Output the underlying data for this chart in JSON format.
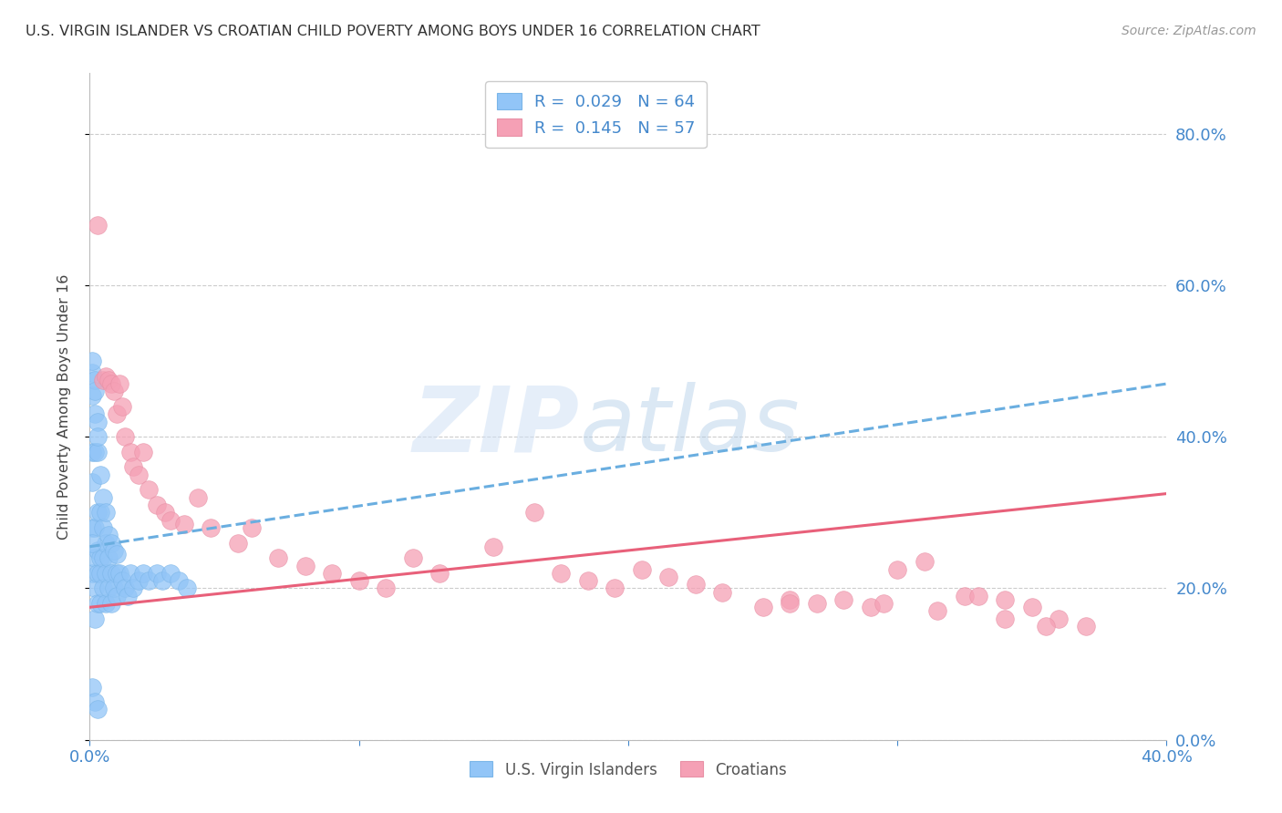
{
  "title": "U.S. VIRGIN ISLANDER VS CROATIAN CHILD POVERTY AMONG BOYS UNDER 16 CORRELATION CHART",
  "source": "Source: ZipAtlas.com",
  "ylabel": "Child Poverty Among Boys Under 16",
  "ytick_labels": [
    "0.0%",
    "20.0%",
    "40.0%",
    "60.0%",
    "80.0%"
  ],
  "ytick_values": [
    0.0,
    0.2,
    0.4,
    0.6,
    0.8
  ],
  "xlim": [
    0.0,
    0.4
  ],
  "ylim": [
    0.0,
    0.88
  ],
  "blue_color": "#92c5f7",
  "pink_color": "#f5a0b5",
  "line_blue_color": "#6aaee0",
  "line_pink_color": "#e8607a",
  "axis_label_color": "#4488cc",
  "title_color": "#333333",
  "grid_color": "#cccccc",
  "blue_scatter_x": [
    0.001,
    0.001,
    0.001,
    0.001,
    0.001,
    0.001,
    0.001,
    0.002,
    0.002,
    0.002,
    0.002,
    0.002,
    0.002,
    0.002,
    0.002,
    0.003,
    0.003,
    0.003,
    0.003,
    0.003,
    0.003,
    0.003,
    0.004,
    0.004,
    0.004,
    0.004,
    0.004,
    0.005,
    0.005,
    0.005,
    0.005,
    0.006,
    0.006,
    0.006,
    0.006,
    0.007,
    0.007,
    0.007,
    0.008,
    0.008,
    0.008,
    0.009,
    0.009,
    0.01,
    0.01,
    0.01,
    0.011,
    0.012,
    0.013,
    0.014,
    0.015,
    0.016,
    0.018,
    0.02,
    0.022,
    0.025,
    0.027,
    0.03,
    0.033,
    0.036,
    0.001,
    0.002,
    0.003,
    0.001
  ],
  "blue_scatter_y": [
    0.485,
    0.455,
    0.38,
    0.34,
    0.28,
    0.22,
    0.07,
    0.475,
    0.43,
    0.38,
    0.28,
    0.24,
    0.2,
    0.16,
    0.05,
    0.42,
    0.38,
    0.3,
    0.25,
    0.22,
    0.18,
    0.04,
    0.35,
    0.3,
    0.24,
    0.22,
    0.18,
    0.32,
    0.28,
    0.24,
    0.2,
    0.3,
    0.26,
    0.22,
    0.18,
    0.27,
    0.24,
    0.2,
    0.26,
    0.22,
    0.18,
    0.25,
    0.2,
    0.245,
    0.22,
    0.19,
    0.22,
    0.21,
    0.2,
    0.19,
    0.22,
    0.2,
    0.21,
    0.22,
    0.21,
    0.22,
    0.21,
    0.22,
    0.21,
    0.2,
    0.5,
    0.46,
    0.4,
    0.26
  ],
  "pink_scatter_x": [
    0.003,
    0.005,
    0.006,
    0.007,
    0.008,
    0.009,
    0.01,
    0.011,
    0.012,
    0.013,
    0.015,
    0.016,
    0.018,
    0.02,
    0.022,
    0.025,
    0.028,
    0.03,
    0.035,
    0.04,
    0.045,
    0.055,
    0.06,
    0.07,
    0.08,
    0.09,
    0.1,
    0.11,
    0.12,
    0.13,
    0.15,
    0.165,
    0.175,
    0.185,
    0.195,
    0.205,
    0.215,
    0.225,
    0.235,
    0.25,
    0.26,
    0.27,
    0.28,
    0.29,
    0.3,
    0.31,
    0.325,
    0.34,
    0.35,
    0.36,
    0.37,
    0.26,
    0.295,
    0.315,
    0.34,
    0.355,
    0.33
  ],
  "pink_scatter_y": [
    0.68,
    0.475,
    0.48,
    0.475,
    0.47,
    0.46,
    0.43,
    0.47,
    0.44,
    0.4,
    0.38,
    0.36,
    0.35,
    0.38,
    0.33,
    0.31,
    0.3,
    0.29,
    0.285,
    0.32,
    0.28,
    0.26,
    0.28,
    0.24,
    0.23,
    0.22,
    0.21,
    0.2,
    0.24,
    0.22,
    0.255,
    0.3,
    0.22,
    0.21,
    0.2,
    0.225,
    0.215,
    0.205,
    0.195,
    0.175,
    0.185,
    0.18,
    0.185,
    0.175,
    0.225,
    0.235,
    0.19,
    0.185,
    0.175,
    0.16,
    0.15,
    0.18,
    0.18,
    0.17,
    0.16,
    0.15,
    0.19
  ],
  "blue_line_x": [
    0.0,
    0.4
  ],
  "blue_line_y": [
    0.255,
    0.47
  ],
  "pink_line_x": [
    0.0,
    0.4
  ],
  "pink_line_y": [
    0.175,
    0.325
  ],
  "legend_items": [
    {
      "color": "#92c5f7",
      "edge": "#7ab5e8",
      "label": "R =  0.029   N = 64"
    },
    {
      "color": "#f5a0b5",
      "edge": "#e890a5",
      "label": "R =  0.145   N = 57"
    }
  ],
  "bottom_legend": [
    {
      "color": "#92c5f7",
      "edge": "#7ab5e8",
      "label": "U.S. Virgin Islanders"
    },
    {
      "color": "#f5a0b5",
      "edge": "#e890a5",
      "label": "Croatians"
    }
  ]
}
